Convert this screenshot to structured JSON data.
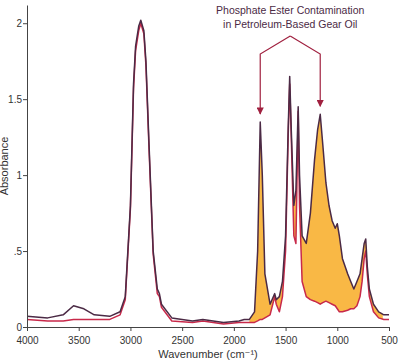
{
  "chart_data": {
    "type": "line",
    "x_label": "Wavenumber (cm⁻¹)",
    "y_label": "Absorbance",
    "xlim": [
      4000,
      500
    ],
    "xticks": [
      4000,
      3500,
      3000,
      2500,
      2000,
      1500,
      1000,
      500
    ],
    "ylim": [
      0,
      2.12
    ],
    "yticks": [
      0,
      {
        "value": 0.5,
        "label": ".5"
      },
      1,
      1.5,
      2
    ],
    "grid": false,
    "x": [
      4000,
      3800,
      3650,
      3550,
      3450,
      3350,
      3200,
      3100,
      3050,
      3000,
      2970,
      2950,
      2920,
      2900,
      2870,
      2850,
      2820,
      2780,
      2740,
      2720,
      2700,
      2600,
      2400,
      2300,
      2100,
      1950,
      1900,
      1850,
      1800,
      1770,
      1745,
      1725,
      1700,
      1650,
      1605,
      1590,
      1560,
      1530,
      1500,
      1475,
      1460,
      1445,
      1420,
      1400,
      1378,
      1365,
      1340,
      1300,
      1260,
      1220,
      1190,
      1165,
      1140,
      1110,
      1080,
      1050,
      1020,
      1000,
      980,
      950,
      900,
      870,
      840,
      810,
      780,
      760,
      740,
      725,
      710,
      690,
      650,
      600,
      550,
      500
    ],
    "series": [
      {
        "color": "#4b2a45",
        "values": [
          0.07,
          0.06,
          0.08,
          0.14,
          0.12,
          0.08,
          0.07,
          0.1,
          0.2,
          0.8,
          1.6,
          1.85,
          1.98,
          2.02,
          1.95,
          1.75,
          1.2,
          0.5,
          0.25,
          0.22,
          0.15,
          0.06,
          0.04,
          0.05,
          0.03,
          0.04,
          0.05,
          0.05,
          0.1,
          0.5,
          1.35,
          1.0,
          0.35,
          0.15,
          0.22,
          0.18,
          0.2,
          0.3,
          0.6,
          1.3,
          1.65,
          1.3,
          0.8,
          0.9,
          1.45,
          1.0,
          0.6,
          0.55,
          0.75,
          1.1,
          1.3,
          1.4,
          1.2,
          0.95,
          0.8,
          0.7,
          0.65,
          0.68,
          0.6,
          0.45,
          0.35,
          0.3,
          0.25,
          0.3,
          0.35,
          0.45,
          0.55,
          0.58,
          0.4,
          0.25,
          0.15,
          0.1,
          0.08,
          0.08
        ]
      },
      {
        "color": "#c8294a",
        "values": [
          0.05,
          0.04,
          0.04,
          0.05,
          0.05,
          0.05,
          0.05,
          0.08,
          0.18,
          0.78,
          1.57,
          1.82,
          1.95,
          2.0,
          1.93,
          1.72,
          1.17,
          0.48,
          0.22,
          0.2,
          0.13,
          0.04,
          0.03,
          0.04,
          0.02,
          0.03,
          0.03,
          0.03,
          0.03,
          0.04,
          0.05,
          0.05,
          0.06,
          0.08,
          0.2,
          0.15,
          0.1,
          0.2,
          0.5,
          1.25,
          1.6,
          1.25,
          0.6,
          0.55,
          1.42,
          0.8,
          0.3,
          0.2,
          0.18,
          0.17,
          0.16,
          0.15,
          0.16,
          0.17,
          0.16,
          0.15,
          0.14,
          0.12,
          0.1,
          0.1,
          0.11,
          0.12,
          0.12,
          0.14,
          0.2,
          0.3,
          0.45,
          0.5,
          0.35,
          0.2,
          0.1,
          0.06,
          0.05,
          0.05
        ]
      }
    ],
    "shaded_region": {
      "x": [
        1850,
        560
      ]
    },
    "annotations": [
      {
        "text": [
          "Phosphate Ester Contamination",
          "in Petroleum-Based Gear Oil"
        ],
        "points": [
          {
            "x": 1745,
            "y": 1.35
          },
          {
            "x": 1165,
            "y": 1.4
          }
        ]
      }
    ]
  }
}
